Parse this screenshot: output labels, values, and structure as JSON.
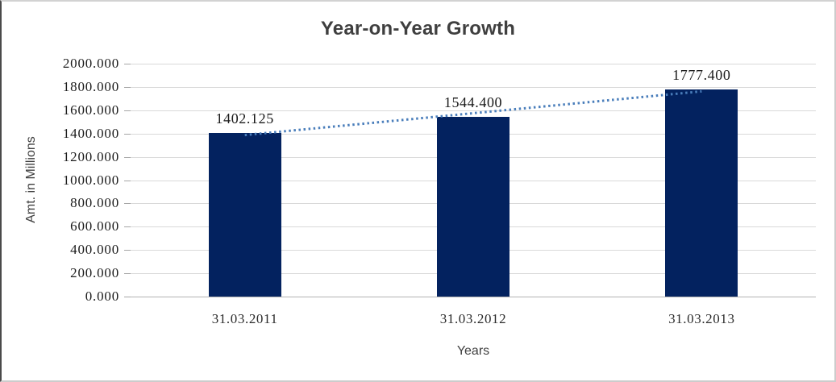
{
  "chart_data": {
    "type": "bar",
    "title": "Year-on-Year Growth",
    "xlabel": "Years",
    "ylabel": "Amt. in Millions",
    "categories": [
      "31.03.2011",
      "31.03.2012",
      "31.03.2013"
    ],
    "values": [
      1402.125,
      1544.4,
      1777.4
    ],
    "data_labels": [
      "1402.125",
      "1544.400",
      "1777.400"
    ],
    "ylim": [
      0,
      2000
    ],
    "ytick_step": 200,
    "ytick_labels": [
      "0.000",
      "200.000",
      "400.000",
      "600.000",
      "800.000",
      "1000.000",
      "1200.000",
      "1400.000",
      "1600.000",
      "1800.000",
      "2000.000"
    ],
    "grid": true,
    "legend": "none",
    "trendline": {
      "type": "linear",
      "style": "dotted"
    },
    "colors": {
      "bar": "#03225f",
      "trendline": "#4a7ebb",
      "gridline": "#d9d9d9",
      "axis_line": "#b3b3b3",
      "number_text": "#1c1c1c",
      "title_text": "#3f3f3f"
    }
  }
}
